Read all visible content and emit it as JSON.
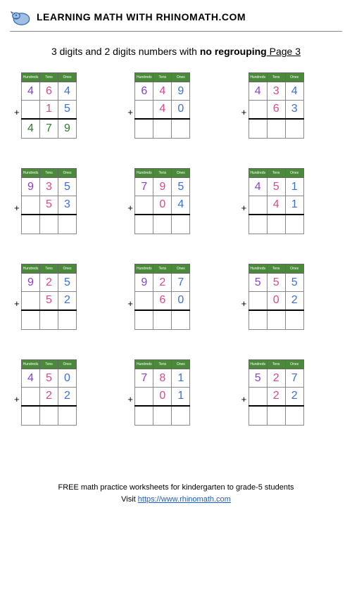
{
  "header": {
    "site_title": "LEARNING MATH WITH RHINOMATH.COM"
  },
  "title": {
    "prefix": "3 digits and 2 digits numbers with ",
    "emphasis": "no regrouping",
    "page_label": " Page 3"
  },
  "table_style": {
    "header_bg": "#4a8a3a",
    "header_color": "#ffffff",
    "header_labels": [
      "Hundreds",
      "Tens",
      "Ones"
    ],
    "cell_border": "#888888",
    "cell_size": 26,
    "digit_fontsize": 16,
    "header_fontsize": 5
  },
  "digit_colors": {
    "hundreds": "#8a3fd1",
    "tens": "#d64a8a",
    "ones": "#3a6fe0",
    "answer": "#2f7a2f"
  },
  "operator": "+",
  "problems": [
    {
      "top": [
        "4",
        "6",
        "4"
      ],
      "bottom": [
        "",
        "1",
        "5"
      ],
      "answer": [
        "4",
        "7",
        "9"
      ]
    },
    {
      "top": [
        "6",
        "4",
        "9"
      ],
      "bottom": [
        "",
        "4",
        "0"
      ],
      "answer": [
        "",
        "",
        ""
      ]
    },
    {
      "top": [
        "4",
        "3",
        "4"
      ],
      "bottom": [
        "",
        "6",
        "3"
      ],
      "answer": [
        "",
        "",
        ""
      ]
    },
    {
      "top": [
        "9",
        "3",
        "5"
      ],
      "bottom": [
        "",
        "5",
        "3"
      ],
      "answer": [
        "",
        "",
        ""
      ]
    },
    {
      "top": [
        "7",
        "9",
        "5"
      ],
      "bottom": [
        "",
        "0",
        "4"
      ],
      "answer": [
        "",
        "",
        ""
      ]
    },
    {
      "top": [
        "4",
        "5",
        "1"
      ],
      "bottom": [
        "",
        "4",
        "1"
      ],
      "answer": [
        "",
        "",
        ""
      ]
    },
    {
      "top": [
        "9",
        "2",
        "5"
      ],
      "bottom": [
        "",
        "5",
        "2"
      ],
      "answer": [
        "",
        "",
        ""
      ]
    },
    {
      "top": [
        "9",
        "2",
        "7"
      ],
      "bottom": [
        "",
        "6",
        "0"
      ],
      "answer": [
        "",
        "",
        ""
      ]
    },
    {
      "top": [
        "5",
        "5",
        "5"
      ],
      "bottom": [
        "",
        "0",
        "2"
      ],
      "answer": [
        "",
        "",
        ""
      ]
    },
    {
      "top": [
        "4",
        "5",
        "0"
      ],
      "bottom": [
        "",
        "2",
        "2"
      ],
      "answer": [
        "",
        "",
        ""
      ]
    },
    {
      "top": [
        "7",
        "8",
        "1"
      ],
      "bottom": [
        "",
        "0",
        "1"
      ],
      "answer": [
        "",
        "",
        ""
      ]
    },
    {
      "top": [
        "5",
        "2",
        "7"
      ],
      "bottom": [
        "",
        "2",
        "2"
      ],
      "answer": [
        "",
        "",
        ""
      ]
    }
  ],
  "footer": {
    "line1": "FREE math practice worksheets for kindergarten to grade-5 students",
    "line2_prefix": "Visit ",
    "link_text": "https://www.rhinomath.com"
  }
}
